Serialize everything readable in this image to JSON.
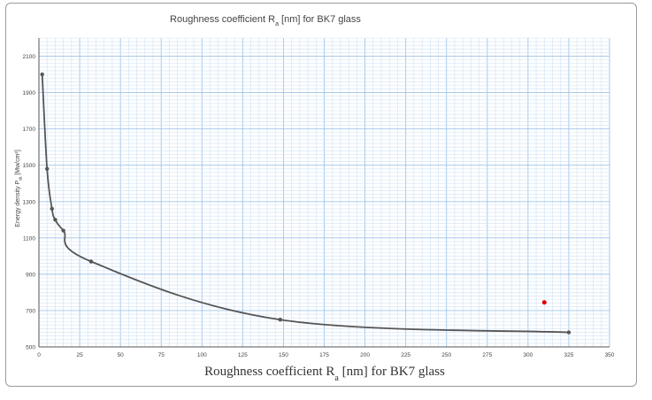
{
  "chart_data": {
    "type": "line",
    "title": "Roughness coefficient R",
    "title_sub": "a",
    "title_rest": " [nm] for BK7 glass",
    "xlabel": "Roughness coefficient R",
    "xlabel_sub": "a",
    "xlabel_rest": " [nm] for BK7 glass",
    "ylabel": "Energy density P",
    "ylabel_sub": "th",
    "ylabel_rest": " [Mw/cm²]",
    "xlim": [
      0,
      350
    ],
    "ylim": [
      500,
      2200
    ],
    "x_ticks": [
      "0",
      "25",
      "50",
      "75",
      "100",
      "125",
      "150",
      "175",
      "200",
      "225",
      "250",
      "275",
      "300",
      "325",
      "350"
    ],
    "y_ticks": [
      "500",
      "700",
      "900",
      "1100",
      "1300",
      "1500",
      "1700",
      "1900",
      "2100"
    ],
    "grid": true,
    "series": [
      {
        "x": [
          2,
          5,
          8,
          10,
          15,
          32,
          148,
          325
        ],
        "y": [
          2000,
          1480,
          1260,
          1200,
          1140,
          970,
          650,
          580
        ],
        "color": "#555555"
      }
    ],
    "extra_points": [
      {
        "x": 310,
        "y": 745,
        "color": "#e00000"
      }
    ]
  }
}
